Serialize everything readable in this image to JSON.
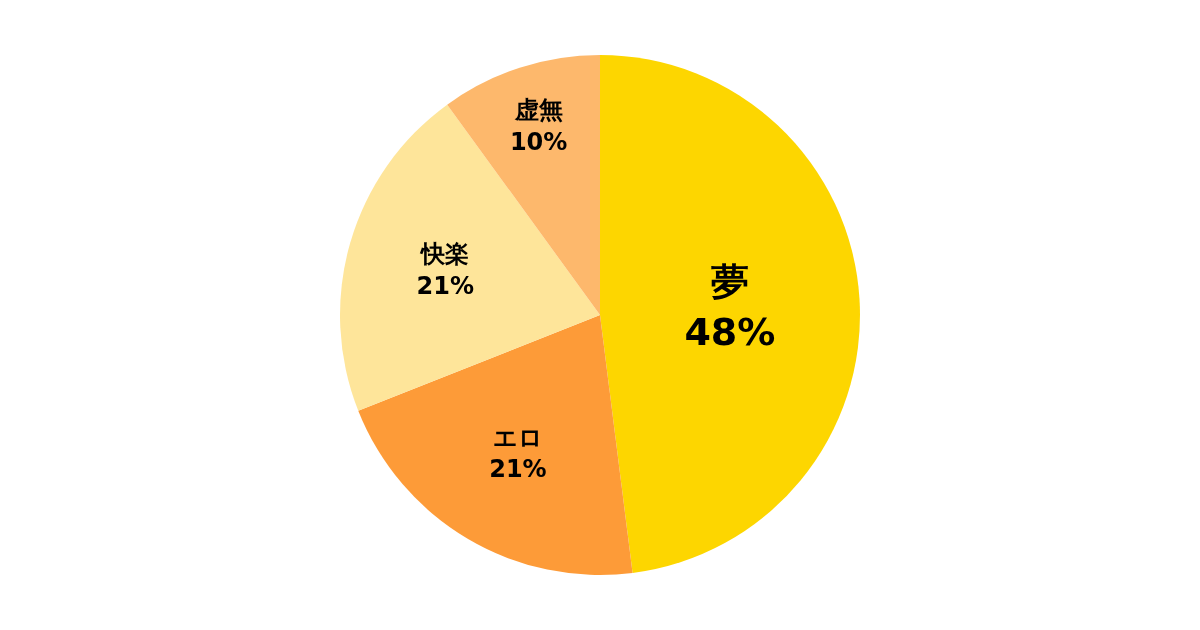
{
  "chart_data": {
    "type": "pie",
    "categories": [
      "夢",
      "エロ",
      "快楽",
      "虚無"
    ],
    "values": [
      48,
      21,
      21,
      10
    ],
    "value_labels": [
      "48%",
      "21%",
      "21%",
      "10%"
    ],
    "colors": [
      "#fdd600",
      "#fd9b38",
      "#fee59a",
      "#fdb86c"
    ],
    "legend": false
  }
}
